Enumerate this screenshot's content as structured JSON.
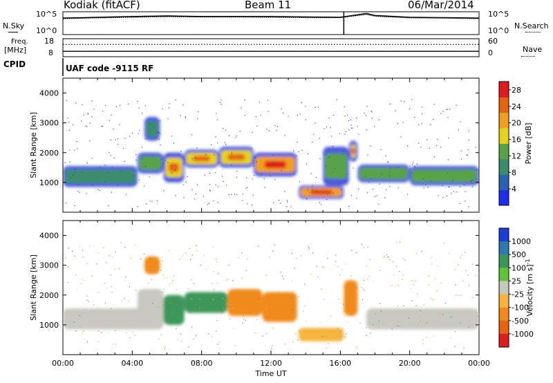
{
  "header": {
    "station": "Kodiak (fitACF)",
    "beam": "Beam 11",
    "date": "06/Mar/2014"
  },
  "side_labels": {
    "nsky": "N.Sky",
    "nsearch": "N.Search",
    "freq_line1": "Freq.",
    "freq_line2": "[MHz]",
    "nave": "Nave",
    "cpid": "CPID",
    "cpid_value": "UAF code -9115 RF"
  },
  "noise_ticks_left": [
    "10^5",
    "10^0"
  ],
  "noise_ticks_right": [
    "10^5",
    "10^0"
  ],
  "freq_ticks": [
    "18",
    "8"
  ],
  "nave_ticks": [
    "60",
    "0"
  ],
  "colors": {
    "power_scale": [
      "#1f2ee6",
      "#2e60b0",
      "#3c8c6e",
      "#5aa24a",
      "#e6d21e",
      "#f0a01e",
      "#e46414",
      "#dc1e1e"
    ],
    "velocity_scale": [
      "#1f3cd6",
      "#2e7ab0",
      "#3c965a",
      "#63c23a",
      "#c8c8c0",
      "#f5b43c",
      "#f08a1e",
      "#e46414",
      "#dc1e1e"
    ]
  },
  "chart_data": [
    {
      "type": "line",
      "panel": "noise",
      "y_scale": "log",
      "ylim": [
        1,
        100000
      ],
      "x": [
        "00:00",
        "02:00",
        "04:00",
        "06:00",
        "08:00",
        "10:00",
        "12:00",
        "14:00",
        "16:00",
        "17:30",
        "18:00",
        "20:00",
        "22:00",
        "24:00"
      ],
      "series": [
        {
          "name": "N.Sky",
          "values": [
            4000,
            6000,
            9000,
            12000,
            9000,
            9000,
            9000,
            7000,
            6000,
            40000,
            15000,
            6000,
            5000,
            4000
          ]
        },
        {
          "name": "N.Search",
          "values": [
            3000,
            4500,
            6000,
            8000,
            7000,
            7000,
            6000,
            5000,
            5000,
            25000,
            10000,
            4500,
            4000,
            3000
          ]
        }
      ]
    },
    {
      "type": "line",
      "panel": "frequency",
      "ylim_left": [
        8,
        18
      ],
      "ylim_right": [
        0,
        60
      ],
      "series": [
        {
          "name": "Freq.",
          "unit": "MHz",
          "value": 11
        },
        {
          "name": "Nave",
          "value": 41
        }
      ]
    },
    {
      "type": "heatmap",
      "title": "Power [dB]",
      "ylabel": "Slant Range [km]",
      "xlabel": "Time UT",
      "xlim_hours": [
        0,
        24
      ],
      "ylim": [
        0,
        4500
      ],
      "yticks": [
        1000,
        2000,
        3000,
        4000
      ],
      "xticks": [
        "00:00",
        "04:00",
        "08:00",
        "12:00",
        "16:00",
        "20:00",
        "00:00"
      ],
      "colorbar_ticks": [
        4,
        8,
        12,
        16,
        20,
        24,
        28
      ],
      "colorbar_range": [
        0,
        30
      ],
      "regions": [
        {
          "t0": 0.0,
          "t1": 4.3,
          "r0": 850,
          "r1": 1550,
          "level": 11
        },
        {
          "t0": 4.3,
          "t1": 5.8,
          "r0": 1300,
          "r1": 2000,
          "level": 13
        },
        {
          "t0": 4.7,
          "t1": 5.6,
          "r0": 2400,
          "r1": 3200,
          "level": 9
        },
        {
          "t0": 5.8,
          "t1": 7.0,
          "r0": 1000,
          "r1": 2000,
          "level": 17
        },
        {
          "t0": 7.0,
          "t1": 9.0,
          "r0": 1500,
          "r1": 2100,
          "level": 16
        },
        {
          "t0": 9.0,
          "t1": 11.0,
          "r0": 1500,
          "r1": 2200,
          "level": 17
        },
        {
          "t0": 11.0,
          "t1": 13.5,
          "r0": 1200,
          "r1": 2000,
          "level": 19
        },
        {
          "t0": 13.6,
          "t1": 16.2,
          "r0": 450,
          "r1": 900,
          "level": 22
        },
        {
          "t0": 15.0,
          "t1": 16.5,
          "r0": 900,
          "r1": 2200,
          "level": 12
        },
        {
          "t0": 16.5,
          "t1": 17.0,
          "r0": 1700,
          "r1": 2400,
          "level": 15
        },
        {
          "t0": 17.0,
          "t1": 20.0,
          "r0": 1000,
          "r1": 1600,
          "level": 13
        },
        {
          "t0": 20.0,
          "t1": 24.0,
          "r0": 900,
          "r1": 1550,
          "level": 14
        }
      ]
    },
    {
      "type": "heatmap",
      "title": "Velocity [m s^-1]",
      "ylabel": "Slant Range [km]",
      "xlabel": "Time UT",
      "xlim_hours": [
        0,
        24
      ],
      "ylim": [
        0,
        4500
      ],
      "yticks": [
        1000,
        2000,
        3000,
        4000
      ],
      "xticks": [
        "00:00",
        "04:00",
        "08:00",
        "12:00",
        "16:00",
        "20:00",
        "00:00"
      ],
      "colorbar_ticks": [
        1000,
        500,
        100,
        25,
        -25,
        -100,
        -500,
        -1000
      ],
      "regions": [
        {
          "t0": 0.0,
          "t1": 5.8,
          "r0": 850,
          "r1": 1550,
          "velocity": 0
        },
        {
          "t0": 4.3,
          "t1": 5.8,
          "r0": 1300,
          "r1": 2200,
          "velocity": 0
        },
        {
          "t0": 4.7,
          "t1": 5.6,
          "r0": 2700,
          "r1": 3300,
          "velocity": -150
        },
        {
          "t0": 5.8,
          "t1": 7.0,
          "r0": 1000,
          "r1": 2000,
          "velocity": 150
        },
        {
          "t0": 7.0,
          "t1": 9.5,
          "r0": 1400,
          "r1": 2100,
          "velocity": 300
        },
        {
          "t0": 9.5,
          "t1": 11.5,
          "r0": 1300,
          "r1": 2200,
          "velocity": -200
        },
        {
          "t0": 11.5,
          "t1": 13.5,
          "r0": 1100,
          "r1": 2100,
          "velocity": -300
        },
        {
          "t0": 13.6,
          "t1": 16.2,
          "r0": 450,
          "r1": 900,
          "velocity": -50
        },
        {
          "t0": 16.2,
          "t1": 17.0,
          "r0": 1300,
          "r1": 2500,
          "velocity": -400
        },
        {
          "t0": 17.5,
          "t1": 24.0,
          "r0": 850,
          "r1": 1550,
          "velocity": 0
        }
      ]
    }
  ]
}
